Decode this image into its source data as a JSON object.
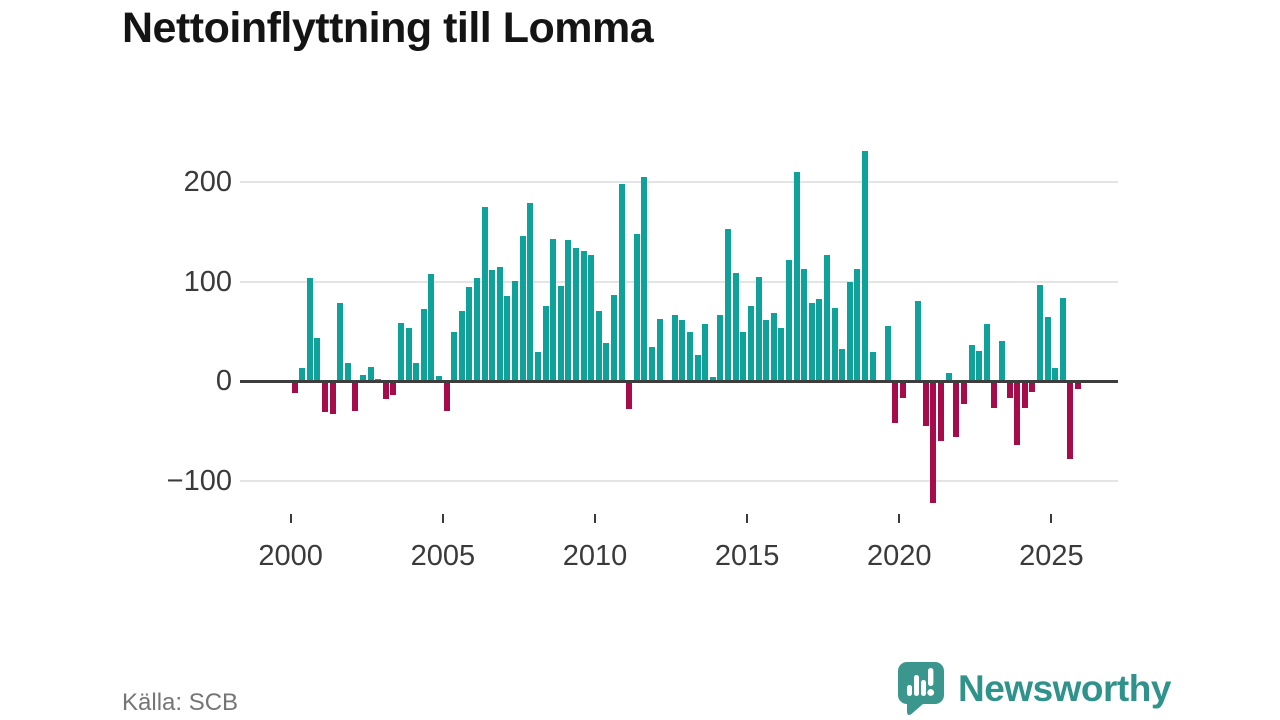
{
  "title": "Nettoinflyttning till Lomma",
  "source": {
    "label": "Källa: SCB"
  },
  "logo": {
    "text": "Newsworthy",
    "icon": "newsworthy-speech-bubble-chart-icon"
  },
  "colors": {
    "positive_bar": "#0ea29a",
    "negative_bar": "#a60c49",
    "zero_line": "#3d3d3d",
    "gridline": "#e4e4e4",
    "axis_text": "#3a3a3a",
    "title_text": "#141414",
    "source_text": "#757575",
    "logo_teal": "#2f938b"
  },
  "chart_data": {
    "type": "bar",
    "title": "Nettoinflyttning till Lomma",
    "frequency": "quarterly",
    "start_period": "2000-Q1",
    "end_period": "2025-Q4",
    "xlabel": "",
    "ylabel": "",
    "x_tick_years": [
      2000,
      2005,
      2010,
      2015,
      2020,
      2025
    ],
    "y_ticks": [
      200,
      100,
      0,
      -100
    ],
    "ylim": [
      -140,
      240
    ],
    "grid": true,
    "legend": "none",
    "series": [
      {
        "name": "Nettoinflyttning",
        "values": [
          -11,
          13,
          104,
          43,
          -30,
          -32,
          78,
          18,
          -29,
          6,
          14,
          2,
          -17,
          -13,
          58,
          53,
          18,
          72,
          108,
          5,
          -29,
          49,
          70,
          94,
          104,
          175,
          112,
          115,
          85,
          101,
          146,
          179,
          29,
          75,
          143,
          95,
          142,
          134,
          131,
          127,
          70,
          38,
          86,
          198,
          -27,
          148,
          205,
          34,
          62,
          0,
          66,
          61,
          49,
          26,
          57,
          4,
          66,
          153,
          109,
          49,
          75,
          105,
          61,
          68,
          53,
          122,
          210,
          113,
          78,
          82,
          127,
          73,
          32,
          100,
          113,
          231,
          29,
          0,
          55,
          -41,
          -16,
          0,
          80,
          -44,
          -122,
          -59,
          8,
          -55,
          -22,
          36,
          30,
          57,
          -26,
          40,
          -16,
          -63,
          -26,
          -10,
          96,
          64,
          13,
          83,
          -77,
          -7
        ]
      }
    ]
  }
}
